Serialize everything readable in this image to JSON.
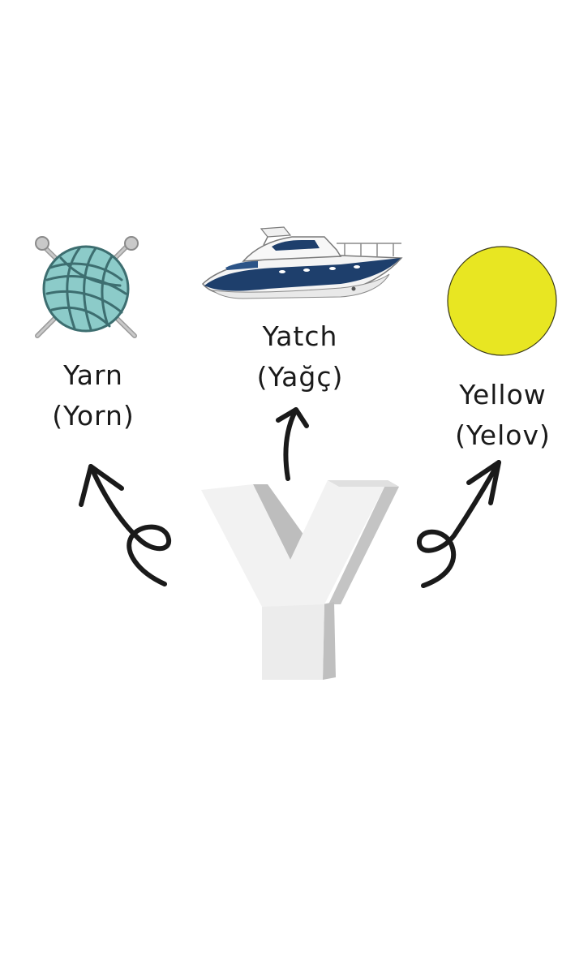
{
  "letter": "Y",
  "items": [
    {
      "id": "yarn",
      "word": "Yarn",
      "pronunciation": "(Yorn)",
      "icon": "yarn-ball-icon"
    },
    {
      "id": "yacht",
      "word": "Yatch",
      "pronunciation": "(Yağç)",
      "icon": "motor-yacht-icon"
    },
    {
      "id": "yellow",
      "word": "Yellow",
      "pronunciation": "(Yelov)",
      "icon": "yellow-circle-icon"
    }
  ],
  "colors": {
    "letter_face": "#f2f2f2",
    "letter_shadow": "#c8c8c8",
    "yarn": "#8ccbc9",
    "yarn_lines": "#3d6e70",
    "needles": "#b9b9b9",
    "yacht_hull": "#1e3f6c",
    "yellow": "#e8e622",
    "arrows": "#1a1a1a"
  }
}
